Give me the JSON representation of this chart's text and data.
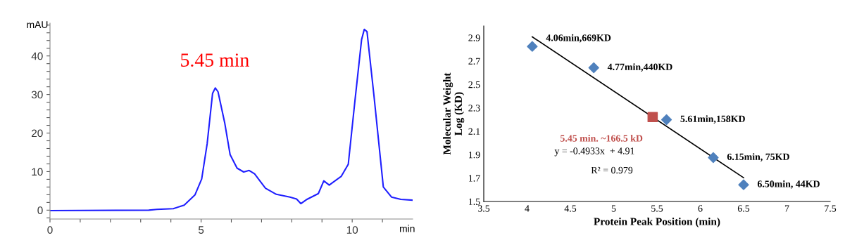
{
  "chart_data": [
    {
      "type": "line",
      "xlabel": "min",
      "ylabel": "mAU",
      "xlim": [
        0,
        12
      ],
      "ylim": [
        -2.3,
        48.5
      ],
      "xticks": [
        0,
        {
          "value": 1,
          "label": null
        },
        {
          "value": 2,
          "label": null
        },
        {
          "value": 3,
          "label": null
        },
        {
          "value": 4,
          "label": null
        },
        5,
        {
          "value": 6,
          "label": null
        },
        {
          "value": 7,
          "label": null
        },
        {
          "value": 8,
          "label": null
        },
        {
          "value": 9,
          "label": null
        },
        10,
        {
          "value": 11,
          "label": null
        }
      ],
      "yticks": [
        {
          "value": -2,
          "label": null
        },
        0,
        {
          "value": 2,
          "label": null
        },
        {
          "value": 4,
          "label": null
        },
        {
          "value": 6,
          "label": null
        },
        {
          "value": 8,
          "label": null
        },
        10,
        {
          "value": 12,
          "label": null
        },
        {
          "value": 14,
          "label": null
        },
        {
          "value": 16,
          "label": null
        },
        {
          "value": 18,
          "label": null
        },
        20,
        {
          "value": 22,
          "label": null
        },
        {
          "value": 24,
          "label": null
        },
        {
          "value": 26,
          "label": null
        },
        {
          "value": 28,
          "label": null
        },
        30,
        {
          "value": 32,
          "label": null
        },
        {
          "value": 34,
          "label": null
        },
        {
          "value": 36,
          "label": null
        },
        {
          "value": 38,
          "label": null
        },
        40,
        {
          "value": 42,
          "label": null
        },
        {
          "value": 44,
          "label": null
        },
        {
          "value": 46,
          "label": null
        },
        {
          "value": 48,
          "label": null
        }
      ],
      "grid": false,
      "legend": false,
      "series": [
        {
          "color": "#1f1fff",
          "x": [
            0,
            3.27,
            3.54,
            4.08,
            4.44,
            4.8,
            5.02,
            5.2,
            5.38,
            5.47,
            5.56,
            5.78,
            5.96,
            6.19,
            6.41,
            6.59,
            6.77,
            7.13,
            7.49,
            7.94,
            8.16,
            8.3,
            8.48,
            8.88,
            9.06,
            9.24,
            9.64,
            9.87,
            10.09,
            10.31,
            10.4,
            10.49,
            10.72,
            11.03,
            11.3,
            11.61,
            12.0
          ],
          "values": [
            -0.1,
            0,
            0.2,
            0.4,
            1.3,
            4.0,
            8.1,
            17.2,
            30.3,
            31.7,
            30.7,
            22.7,
            14.4,
            10.9,
            9.9,
            10.3,
            9.4,
            5.7,
            4.1,
            3.4,
            2.9,
            1.7,
            2.7,
            4.3,
            7.6,
            6.5,
            8.8,
            11.9,
            28.3,
            44.2,
            46.9,
            46.3,
            29.7,
            6.0,
            3.4,
            2.8,
            2.6
          ]
        }
      ],
      "annotations": [
        {
          "text": "5.45 min",
          "x": 5.45,
          "y": 31.7
        }
      ]
    },
    {
      "type": "scatter",
      "xlabel": "Protein Peak Position (min)",
      "ylabel": "Molecular Weight\nLog (KD)",
      "xlim": [
        3.5,
        7.5
      ],
      "ylim": [
        1.5,
        3.0
      ],
      "xticks": [
        3.5,
        4,
        4.5,
        5,
        5.5,
        6,
        6.5,
        7,
        7.5
      ],
      "yticks": [
        1.5,
        1.7,
        1.9,
        2.1,
        2.3,
        2.5,
        2.7,
        2.9
      ],
      "grid": false,
      "legend": false,
      "series": [
        {
          "type": "scatter",
          "marker": "diamond",
          "color": "#4f81bd",
          "x": [
            4.06,
            4.77,
            5.61,
            6.15,
            6.5
          ],
          "values": [
            2.825,
            2.643,
            2.199,
            1.875,
            1.643
          ]
        },
        {
          "type": "scatter",
          "marker": "square",
          "color": "#c0504d",
          "x": [
            5.45
          ],
          "values": [
            2.221
          ]
        },
        {
          "type": "line",
          "color": "#000000",
          "x": [
            4.06,
            6.5
          ],
          "values": [
            2.907,
            1.703
          ]
        }
      ],
      "annotations": [
        {
          "text": "4.06min,669KD",
          "x": 4.06,
          "y": 2.825
        },
        {
          "text": "4.77min,440KD",
          "x": 4.77,
          "y": 2.643
        },
        {
          "text": "5.61min,158KD",
          "x": 5.61,
          "y": 2.199
        },
        {
          "text": "6.15min, 75KD",
          "x": 6.15,
          "y": 1.875
        },
        {
          "text": "6.50min, 44KD",
          "x": 6.5,
          "y": 1.643
        },
        {
          "text": "5.45 min. ~166.5 kD",
          "x": 5.45,
          "y": 2.221
        },
        "y = -0.4933x  + 4.91",
        "R² = 0.979"
      ]
    }
  ]
}
